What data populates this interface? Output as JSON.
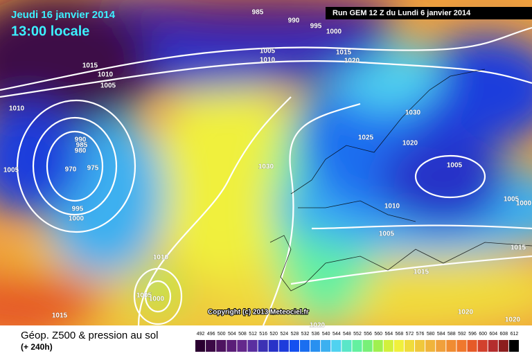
{
  "header": {
    "date": "Jeudi 16 janvier 2014",
    "time": "13:00 locale",
    "run": "Run GEM 12 Z du Lundi 6 janvier 2014"
  },
  "copyright": "Copyright (c) 2013 Meteociel.fr",
  "footer": {
    "title": "Géop. Z500 & pression au sol",
    "lead": "(+ 240h)"
  },
  "isobar_labels": [
    985,
    990,
    995,
    1000,
    1015,
    1010,
    1005,
    1010,
    1005,
    1010,
    1015,
    1020,
    1030,
    1025,
    1020,
    1005,
    990,
    985,
    980,
    970,
    975,
    1005,
    995,
    1000,
    1030,
    1010,
    1005,
    1005,
    1000,
    1015,
    1015,
    1010,
    1005,
    1000,
    1015,
    1020,
    1020,
    1020
  ],
  "color_scale": {
    "values": [
      492,
      496,
      500,
      504,
      508,
      512,
      516,
      520,
      524,
      528,
      532,
      536,
      540,
      544,
      548,
      552,
      556,
      560,
      564,
      568,
      572,
      576,
      580,
      584,
      588,
      592,
      596,
      600,
      604,
      608,
      612
    ],
    "colors": [
      "#2a0030",
      "#3c0a46",
      "#4e1460",
      "#5a1e78",
      "#64288c",
      "#5a2fa0",
      "#3c32b4",
      "#2832c8",
      "#1e3cdc",
      "#1450f0",
      "#1a6ef0",
      "#2890f0",
      "#3cb0f0",
      "#50d2f0",
      "#5ae6c8",
      "#64f0a0",
      "#78f078",
      "#a0f050",
      "#d2f03c",
      "#f0f03c",
      "#f0dc3c",
      "#f0c83c",
      "#f0b43c",
      "#f0a03c",
      "#f08c32",
      "#f0782d",
      "#e65a28",
      "#d2412d",
      "#b42d2d",
      "#8c1e1e",
      "#000000"
    ]
  }
}
